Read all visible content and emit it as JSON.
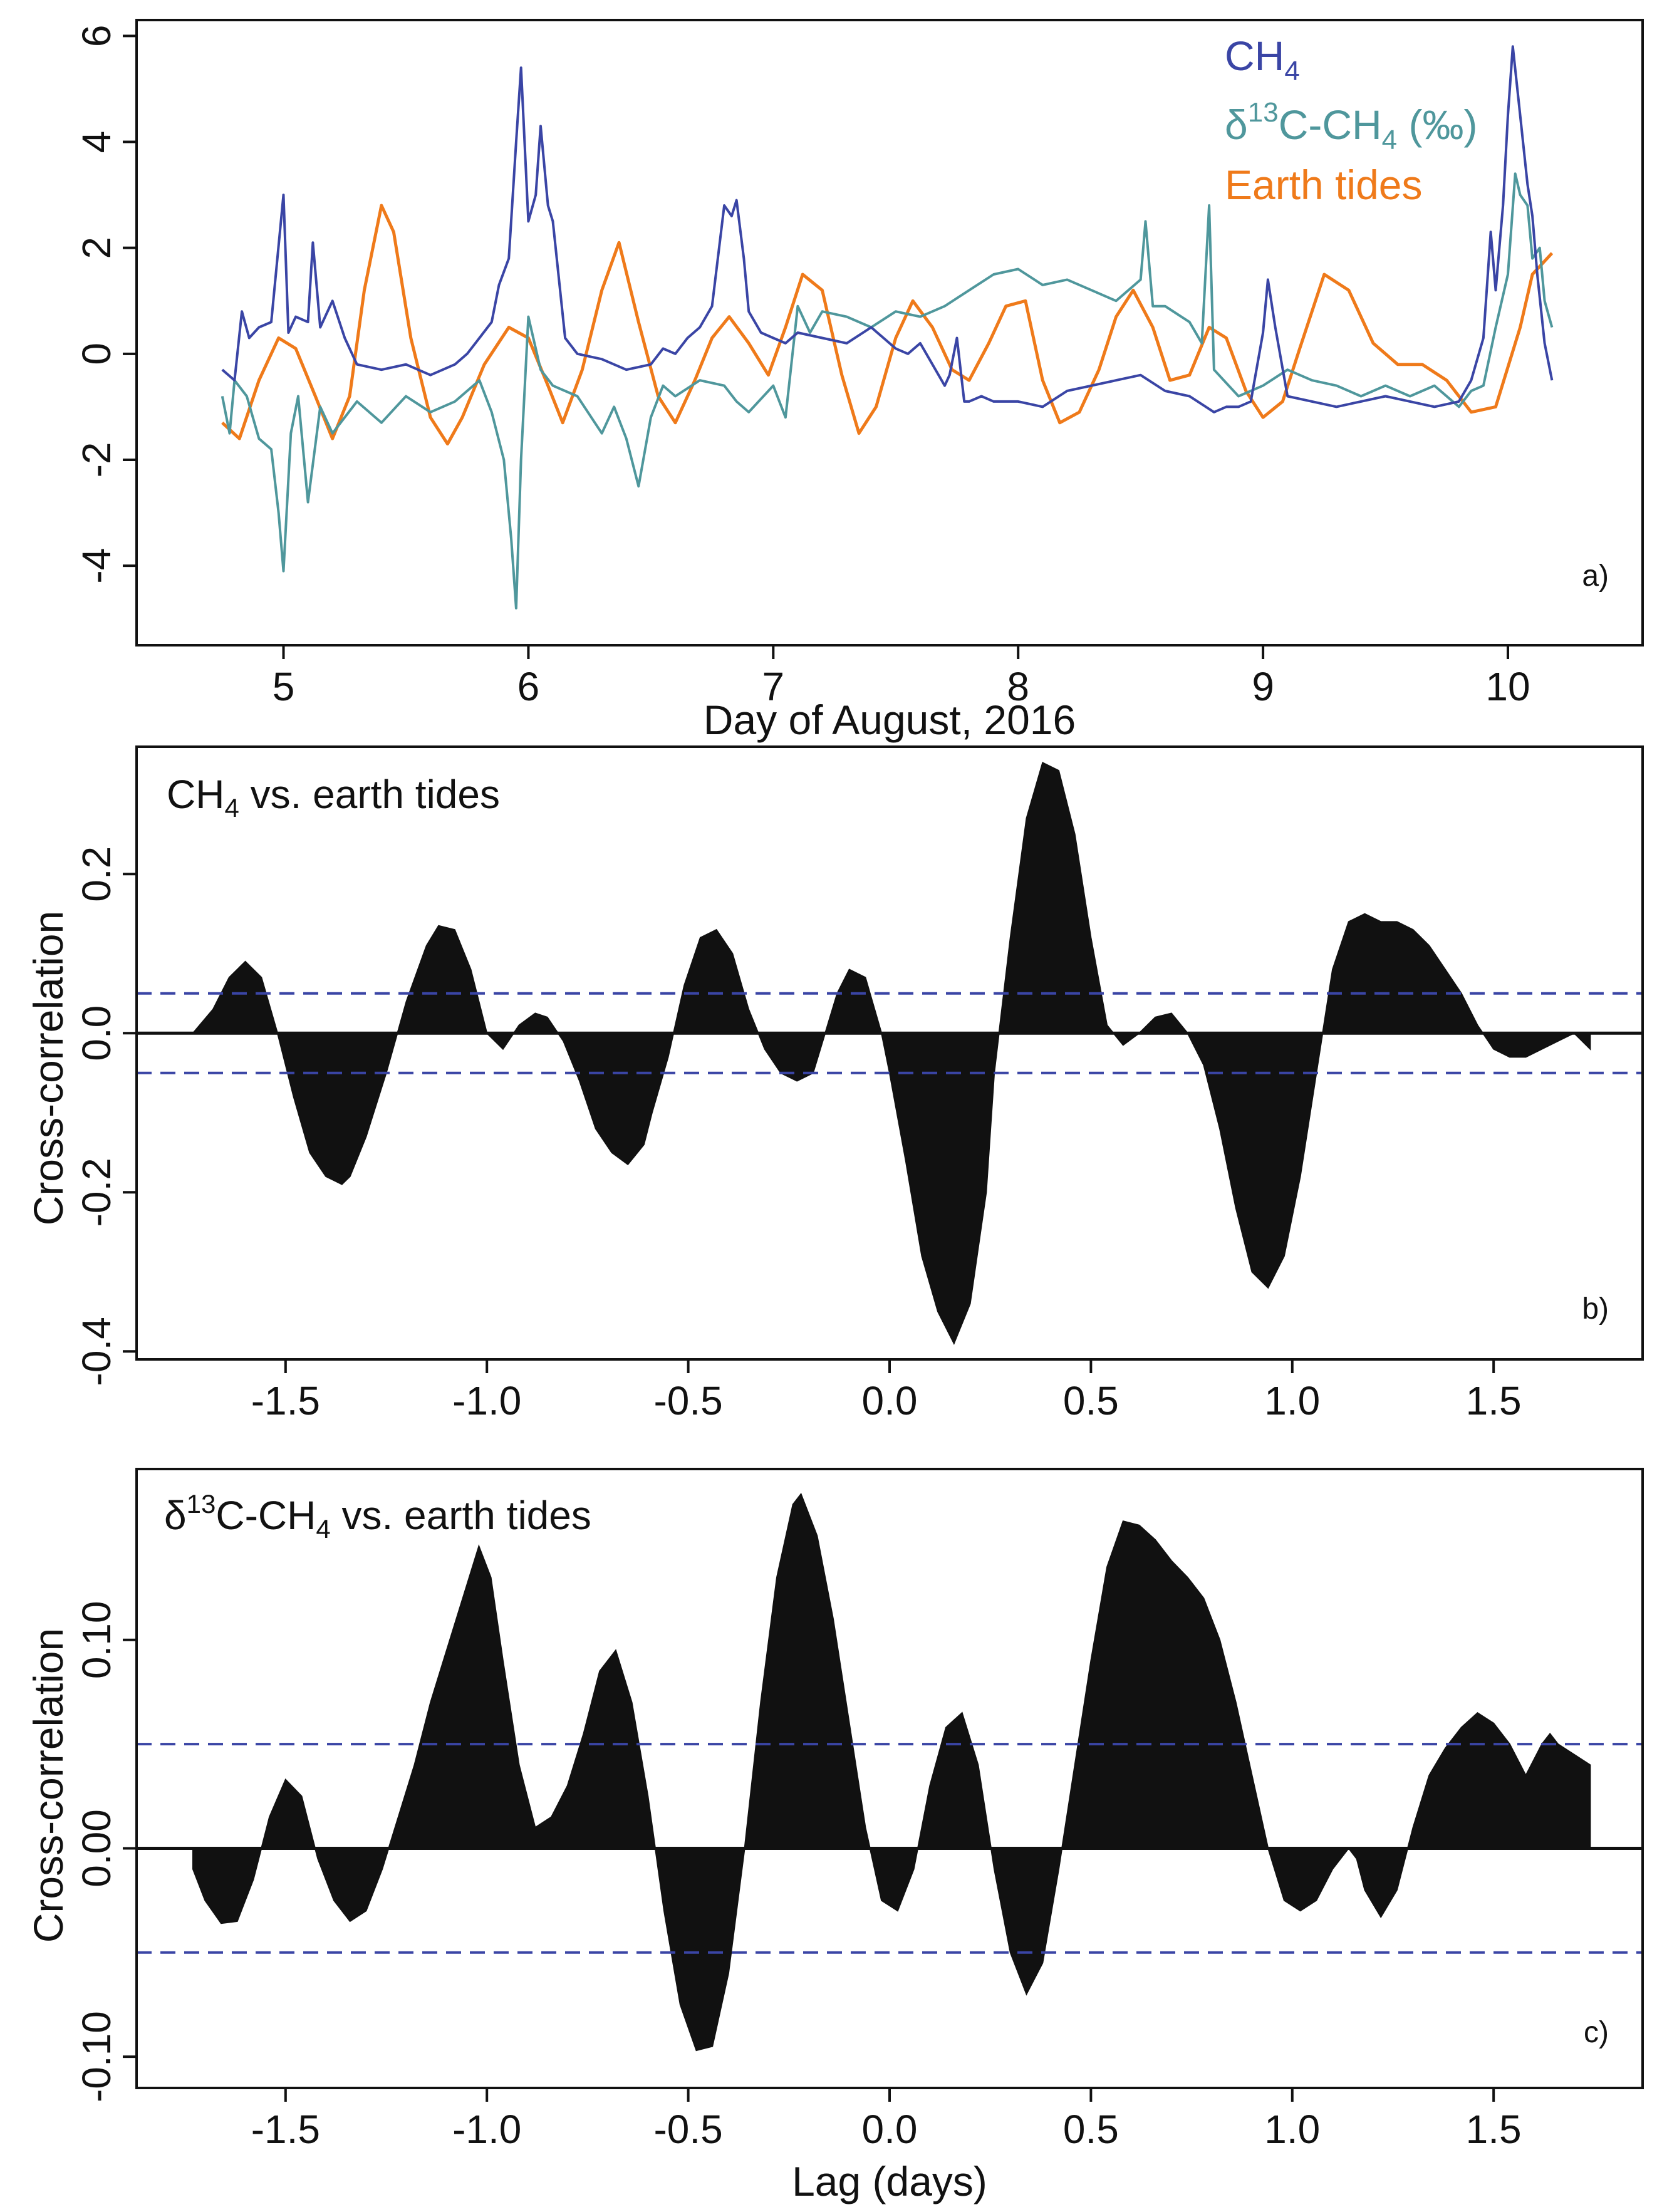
{
  "colors": {
    "ch4": "#3a45a5",
    "d13c": "#4f979c",
    "tides": "#ef7a1a",
    "bars": "#111111",
    "sig": "#3a45a5"
  },
  "chart_data": [
    {
      "id": "a",
      "type": "line",
      "panel_label": "a)",
      "xlabel": "Day of August, 2016",
      "ylabel": "",
      "xlim": [
        4.4,
        10.55
      ],
      "ylim": [
        -5.5,
        6.3
      ],
      "x_ticks": [
        5,
        6,
        7,
        8,
        9,
        10
      ],
      "x_tick_labels": [
        "5",
        "6",
        "7",
        "8",
        "9",
        "10"
      ],
      "y_ticks": [
        6,
        4,
        2,
        0,
        -2,
        -4
      ],
      "y_tick_labels": [
        "6",
        "4",
        "2",
        "0",
        "-2",
        "-4"
      ],
      "legend": {
        "position": "top-right",
        "entries": [
          {
            "key": "ch4",
            "main": "CH",
            "sub": "4",
            "sup": "",
            "after": ""
          },
          {
            "key": "d13c",
            "main": "δ",
            "sup": "13",
            "mid": "C-CH",
            "sub": "4",
            "after": " (‰)"
          },
          {
            "key": "tides",
            "main": "Earth tides",
            "sup": "",
            "sub": "",
            "after": ""
          }
        ]
      },
      "series": [
        {
          "name": "CH4",
          "key": "ch4",
          "x": [
            4.75,
            4.8,
            4.83,
            4.86,
            4.9,
            4.95,
            5.0,
            5.02,
            5.05,
            5.1,
            5.12,
            5.15,
            5.2,
            5.25,
            5.3,
            5.4,
            5.5,
            5.6,
            5.7,
            5.75,
            5.8,
            5.85,
            5.88,
            5.92,
            5.95,
            5.97,
            6.0,
            6.03,
            6.05,
            6.08,
            6.1,
            6.15,
            6.2,
            6.3,
            6.4,
            6.5,
            6.55,
            6.6,
            6.65,
            6.7,
            6.75,
            6.8,
            6.83,
            6.85,
            6.88,
            6.9,
            6.95,
            7.0,
            7.05,
            7.1,
            7.2,
            7.3,
            7.4,
            7.5,
            7.55,
            7.6,
            7.7,
            7.72,
            7.75,
            7.78,
            7.8,
            7.85,
            7.9,
            8.0,
            8.1,
            8.2,
            8.3,
            8.4,
            8.5,
            8.6,
            8.7,
            8.8,
            8.85,
            8.9,
            8.95,
            9.0,
            9.02,
            9.05,
            9.1,
            9.2,
            9.3,
            9.4,
            9.5,
            9.6,
            9.7,
            9.8,
            9.85,
            9.9,
            9.93,
            9.95,
            9.98,
            10.0,
            10.02,
            10.05,
            10.08,
            10.1,
            10.12,
            10.15,
            10.18
          ],
          "y": [
            -0.3,
            -0.5,
            0.8,
            0.3,
            0.5,
            0.6,
            3.0,
            0.4,
            0.7,
            0.6,
            2.1,
            0.5,
            1.0,
            0.3,
            -0.2,
            -0.3,
            -0.2,
            -0.4,
            -0.2,
            0.0,
            0.3,
            0.6,
            1.3,
            1.8,
            4.0,
            5.4,
            2.5,
            3.0,
            4.3,
            2.8,
            2.5,
            0.3,
            0.0,
            -0.1,
            -0.3,
            -0.2,
            0.1,
            0.0,
            0.3,
            0.5,
            0.9,
            2.8,
            2.6,
            2.9,
            1.8,
            0.8,
            0.4,
            0.3,
            0.2,
            0.4,
            0.3,
            0.2,
            0.5,
            0.1,
            0.0,
            0.2,
            -0.6,
            -0.4,
            0.3,
            -0.9,
            -0.9,
            -0.8,
            -0.9,
            -0.9,
            -1.0,
            -0.7,
            -0.6,
            -0.5,
            -0.4,
            -0.7,
            -0.8,
            -1.1,
            -1.0,
            -1.0,
            -0.9,
            0.4,
            1.4,
            0.5,
            -0.8,
            -0.9,
            -1.0,
            -0.9,
            -0.8,
            -0.9,
            -1.0,
            -0.9,
            -0.5,
            0.3,
            2.3,
            1.2,
            2.8,
            4.5,
            5.8,
            4.5,
            3.2,
            2.6,
            1.5,
            0.2,
            -0.5
          ]
        },
        {
          "name": "δ13C-CH4 (‰)",
          "key": "d13c",
          "x": [
            4.75,
            4.78,
            4.8,
            4.85,
            4.9,
            4.95,
            4.98,
            5.0,
            5.03,
            5.06,
            5.1,
            5.15,
            5.2,
            5.3,
            5.4,
            5.5,
            5.6,
            5.7,
            5.8,
            5.85,
            5.9,
            5.93,
            5.95,
            5.97,
            6.0,
            6.05,
            6.1,
            6.2,
            6.3,
            6.35,
            6.4,
            6.45,
            6.5,
            6.55,
            6.6,
            6.7,
            6.8,
            6.85,
            6.9,
            7.0,
            7.05,
            7.1,
            7.15,
            7.2,
            7.3,
            7.4,
            7.5,
            7.6,
            7.7,
            7.8,
            7.9,
            8.0,
            8.1,
            8.2,
            8.3,
            8.4,
            8.5,
            8.52,
            8.55,
            8.6,
            8.7,
            8.75,
            8.78,
            8.8,
            8.9,
            9.0,
            9.1,
            9.2,
            9.3,
            9.4,
            9.5,
            9.6,
            9.7,
            9.8,
            9.85,
            9.9,
            9.95,
            10.0,
            10.03,
            10.05,
            10.08,
            10.1,
            10.13,
            10.15,
            10.18
          ],
          "y": [
            -0.8,
            -1.5,
            -0.5,
            -0.8,
            -1.6,
            -1.8,
            -3.0,
            -4.1,
            -1.5,
            -0.8,
            -2.8,
            -1.0,
            -1.5,
            -0.9,
            -1.3,
            -0.8,
            -1.1,
            -0.9,
            -0.5,
            -1.1,
            -2.0,
            -3.5,
            -4.8,
            -2.0,
            0.7,
            -0.3,
            -0.6,
            -0.8,
            -1.5,
            -1.0,
            -1.6,
            -2.5,
            -1.2,
            -0.6,
            -0.8,
            -0.5,
            -0.6,
            -0.9,
            -1.1,
            -0.6,
            -1.2,
            0.9,
            0.4,
            0.8,
            0.7,
            0.5,
            0.8,
            0.7,
            0.9,
            1.2,
            1.5,
            1.6,
            1.3,
            1.4,
            1.2,
            1.0,
            1.4,
            2.5,
            0.9,
            0.9,
            0.6,
            0.2,
            2.8,
            -0.3,
            -0.8,
            -0.6,
            -0.3,
            -0.5,
            -0.6,
            -0.8,
            -0.6,
            -0.8,
            -0.6,
            -1.0,
            -0.7,
            -0.6,
            0.5,
            1.5,
            3.4,
            3.0,
            2.8,
            1.8,
            2.0,
            1.0,
            0.5
          ]
        },
        {
          "name": "Earth tides",
          "key": "tides",
          "x": [
            4.75,
            4.82,
            4.9,
            4.98,
            5.05,
            5.13,
            5.2,
            5.27,
            5.33,
            5.4,
            5.45,
            5.52,
            5.6,
            5.67,
            5.73,
            5.82,
            5.92,
            6.0,
            6.08,
            6.14,
            6.22,
            6.3,
            6.37,
            6.45,
            6.53,
            6.6,
            6.68,
            6.75,
            6.82,
            6.9,
            6.98,
            7.05,
            7.12,
            7.2,
            7.28,
            7.35,
            7.42,
            7.5,
            7.57,
            7.65,
            7.73,
            7.8,
            7.88,
            7.95,
            8.03,
            8.1,
            8.17,
            8.25,
            8.33,
            8.4,
            8.47,
            8.55,
            8.62,
            8.7,
            8.78,
            8.85,
            8.93,
            9.0,
            9.08,
            9.15,
            9.25,
            9.35,
            9.45,
            9.55,
            9.65,
            9.75,
            9.85,
            9.95,
            10.05,
            10.1,
            10.18
          ],
          "y": [
            -1.3,
            -1.6,
            -0.5,
            0.3,
            0.1,
            -0.8,
            -1.6,
            -0.8,
            1.2,
            2.8,
            2.3,
            0.3,
            -1.2,
            -1.7,
            -1.2,
            -0.2,
            0.5,
            0.3,
            -0.6,
            -1.3,
            -0.3,
            1.2,
            2.1,
            0.6,
            -0.8,
            -1.3,
            -0.5,
            0.3,
            0.7,
            0.2,
            -0.4,
            0.5,
            1.5,
            1.2,
            -0.4,
            -1.5,
            -1.0,
            0.3,
            1.0,
            0.5,
            -0.3,
            -0.5,
            0.2,
            0.9,
            1.0,
            -0.5,
            -1.3,
            -1.1,
            -0.3,
            0.7,
            1.2,
            0.5,
            -0.5,
            -0.4,
            0.5,
            0.3,
            -0.7,
            -1.2,
            -0.9,
            0.1,
            1.5,
            1.2,
            0.2,
            -0.2,
            -0.2,
            -0.5,
            -1.1,
            -1.0,
            0.5,
            1.5,
            1.9
          ]
        }
      ]
    },
    {
      "id": "b",
      "type": "area",
      "panel_label": "b)",
      "subtitle": {
        "main": "CH",
        "sub": "4",
        "after": " vs. earth tides"
      },
      "xlabel": "",
      "ylabel": "Cross-correlation",
      "xlim": [
        -1.87,
        1.87
      ],
      "ylim": [
        -0.41,
        0.36
      ],
      "x_ticks": [
        -1.5,
        -1.0,
        -0.5,
        0.0,
        0.5,
        1.0,
        1.5
      ],
      "x_tick_labels": [
        "-1.5",
        "-1.0",
        "-0.5",
        "0.0",
        "0.5",
        "1.0",
        "1.5"
      ],
      "y_ticks": [
        0.2,
        0.0,
        -0.2,
        -0.4
      ],
      "y_tick_labels": [
        "0.2",
        "0.0",
        "-0.2",
        "-0.4"
      ],
      "significance": [
        0.05,
        -0.05
      ],
      "lag": [
        -1.73,
        -1.68,
        -1.64,
        -1.6,
        -1.56,
        -1.52,
        -1.48,
        -1.44,
        -1.4,
        -1.36,
        -1.34,
        -1.3,
        -1.25,
        -1.2,
        -1.15,
        -1.12,
        -1.08,
        -1.04,
        -1.0,
        -0.96,
        -0.92,
        -0.88,
        -0.85,
        -0.81,
        -0.77,
        -0.73,
        -0.69,
        -0.65,
        -0.61,
        -0.59,
        -0.55,
        -0.51,
        -0.47,
        -0.43,
        -0.39,
        -0.35,
        -0.31,
        -0.27,
        -0.23,
        -0.19,
        -0.16,
        -0.13,
        -0.1,
        -0.06,
        -0.02,
        0.0,
        0.04,
        0.08,
        0.12,
        0.16,
        0.2,
        0.24,
        0.26,
        0.3,
        0.34,
        0.38,
        0.42,
        0.46,
        0.5,
        0.54,
        0.58,
        0.62,
        0.66,
        0.7,
        0.74,
        0.78,
        0.82,
        0.86,
        0.9,
        0.94,
        0.98,
        1.02,
        1.06,
        1.1,
        1.14,
        1.18,
        1.22,
        1.26,
        1.3,
        1.34,
        1.38,
        1.42,
        1.46,
        1.5,
        1.54,
        1.58,
        1.62,
        1.66,
        1.7,
        1.74
      ],
      "values": [
        0.0,
        0.03,
        0.07,
        0.09,
        0.07,
        0.0,
        -0.08,
        -0.15,
        -0.18,
        -0.19,
        -0.18,
        -0.13,
        -0.05,
        0.04,
        0.11,
        0.135,
        0.13,
        0.08,
        0.0,
        -0.02,
        0.01,
        0.025,
        0.02,
        -0.01,
        -0.06,
        -0.12,
        -0.15,
        -0.165,
        -0.14,
        -0.1,
        -0.03,
        0.06,
        0.12,
        0.13,
        0.1,
        0.03,
        -0.02,
        -0.05,
        -0.06,
        -0.05,
        0.0,
        0.05,
        0.08,
        0.07,
        0.0,
        -0.05,
        -0.16,
        -0.28,
        -0.35,
        -0.39,
        -0.34,
        -0.2,
        -0.05,
        0.12,
        0.27,
        0.34,
        0.33,
        0.25,
        0.12,
        0.01,
        -0.015,
        0.0,
        0.02,
        0.025,
        0.0,
        -0.04,
        -0.12,
        -0.22,
        -0.3,
        -0.32,
        -0.28,
        -0.18,
        -0.05,
        0.08,
        0.14,
        0.15,
        0.14,
        0.14,
        0.13,
        0.11,
        0.08,
        0.05,
        0.01,
        -0.02,
        -0.03,
        -0.03,
        -0.02,
        -0.01,
        0.0,
        -0.02
      ]
    },
    {
      "id": "c",
      "type": "area",
      "panel_label": "c)",
      "subtitle": {
        "main": "δ",
        "sup": "13",
        "mid": "C-CH",
        "sub": "4",
        "after": " vs. earth tides"
      },
      "xlabel": "Lag (days)",
      "ylabel": "Cross-correlation",
      "xlim": [
        -1.87,
        1.87
      ],
      "ylim": [
        -0.115,
        0.182
      ],
      "x_ticks": [
        -1.5,
        -1.0,
        -0.5,
        0.0,
        0.5,
        1.0,
        1.5
      ],
      "x_tick_labels": [
        "-1.5",
        "-1.0",
        "-0.5",
        "0.0",
        "0.5",
        "1.0",
        "1.5"
      ],
      "y_ticks": [
        0.1,
        0.0,
        -0.1
      ],
      "y_tick_labels": [
        "0.10",
        "0.00",
        "-0.10"
      ],
      "significance": [
        0.05,
        -0.05
      ],
      "lag": [
        -1.73,
        -1.7,
        -1.66,
        -1.62,
        -1.58,
        -1.54,
        -1.5,
        -1.46,
        -1.42,
        -1.38,
        -1.34,
        -1.3,
        -1.26,
        -1.22,
        -1.18,
        -1.14,
        -1.1,
        -1.06,
        -1.02,
        -0.99,
        -0.96,
        -0.92,
        -0.88,
        -0.84,
        -0.8,
        -0.76,
        -0.72,
        -0.68,
        -0.64,
        -0.6,
        -0.56,
        -0.52,
        -0.48,
        -0.44,
        -0.4,
        -0.36,
        -0.32,
        -0.28,
        -0.24,
        -0.22,
        -0.18,
        -0.14,
        -0.1,
        -0.06,
        -0.02,
        0.02,
        0.06,
        0.1,
        0.14,
        0.18,
        0.22,
        0.26,
        0.3,
        0.34,
        0.38,
        0.42,
        0.46,
        0.5,
        0.54,
        0.58,
        0.62,
        0.66,
        0.7,
        0.74,
        0.78,
        0.82,
        0.86,
        0.9,
        0.94,
        0.98,
        1.02,
        1.06,
        1.1,
        1.14,
        1.16,
        1.18,
        1.22,
        1.26,
        1.3,
        1.34,
        1.38,
        1.42,
        1.46,
        1.5,
        1.54,
        1.58,
        1.62,
        1.64,
        1.66,
        1.7,
        1.74
      ],
      "values": [
        -0.01,
        -0.025,
        -0.036,
        -0.035,
        -0.015,
        0.015,
        0.033,
        0.025,
        -0.005,
        -0.025,
        -0.035,
        -0.03,
        -0.01,
        0.015,
        0.04,
        0.07,
        0.095,
        0.12,
        0.145,
        0.13,
        0.09,
        0.04,
        0.01,
        0.015,
        0.03,
        0.055,
        0.085,
        0.095,
        0.07,
        0.025,
        -0.03,
        -0.075,
        -0.097,
        -0.095,
        -0.06,
        0.0,
        0.07,
        0.13,
        0.165,
        0.17,
        0.15,
        0.11,
        0.06,
        0.01,
        -0.025,
        -0.03,
        -0.01,
        0.03,
        0.058,
        0.065,
        0.04,
        -0.01,
        -0.05,
        -0.07,
        -0.055,
        -0.01,
        0.04,
        0.09,
        0.135,
        0.157,
        0.155,
        0.148,
        0.138,
        0.13,
        0.12,
        0.1,
        0.07,
        0.035,
        0.0,
        -0.025,
        -0.03,
        -0.025,
        -0.01,
        0.0,
        -0.005,
        -0.02,
        -0.033,
        -0.02,
        0.01,
        0.035,
        0.048,
        0.058,
        0.065,
        0.06,
        0.05,
        0.035,
        0.05,
        0.055,
        0.05,
        0.045,
        0.04
      ]
    }
  ]
}
